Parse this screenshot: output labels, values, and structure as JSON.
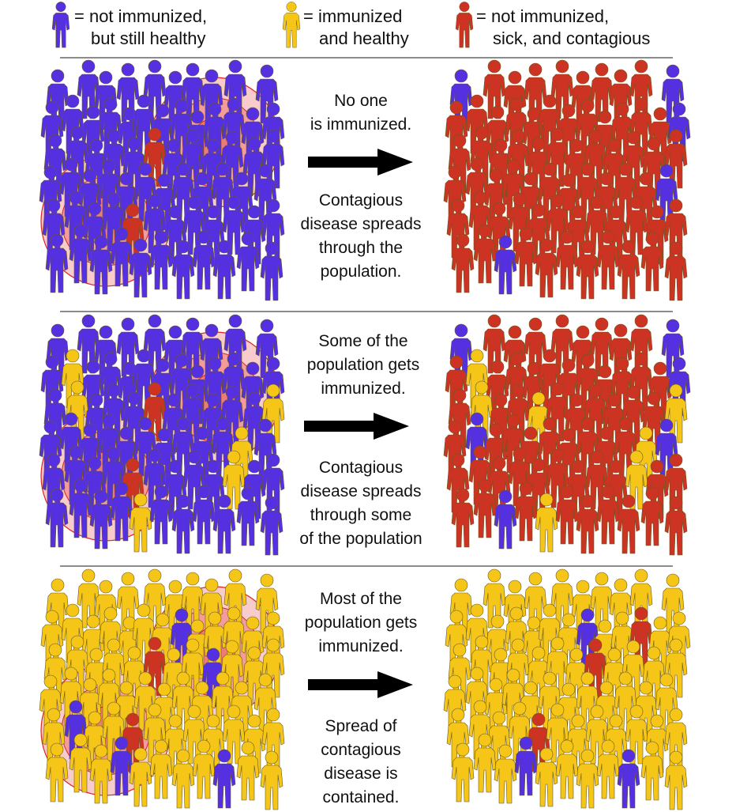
{
  "legend": {
    "blue": {
      "line1": "= not immunized,",
      "line2": "but still healthy"
    },
    "yellow": {
      "line1": "= immunized",
      "line2": "and healthy"
    },
    "red": {
      "line1": "= not immunized,",
      "line2": "sick, and contagious"
    }
  },
  "colors": {
    "not_immunized_healthy": "#5530e0",
    "immunized_healthy": "#f5c518",
    "sick_contagious": "#cc3322",
    "ring_outer": "#f8cccc",
    "ring_mid": "#f49c9c",
    "ring_inner": "#ee7a7a",
    "ring_stroke": "#e02020",
    "divider": "#8c8c8c",
    "arrow": "#000000"
  },
  "panels": [
    {
      "id": "none",
      "text_top": [
        "No one",
        "is immunized."
      ],
      "text_bottom": [
        "Contagious",
        "disease spreads",
        "through the",
        "population."
      ]
    },
    {
      "id": "some",
      "text_top": [
        "Some of the",
        "population gets",
        "immunized."
      ],
      "text_bottom": [
        "Contagious",
        "disease spreads",
        "through some",
        "of the population"
      ]
    },
    {
      "id": "most",
      "text_top": [
        "Most of the",
        "population gets",
        "immunized."
      ],
      "text_bottom": [
        "Spread of",
        "contagious",
        "disease is",
        "contained."
      ]
    }
  ]
}
